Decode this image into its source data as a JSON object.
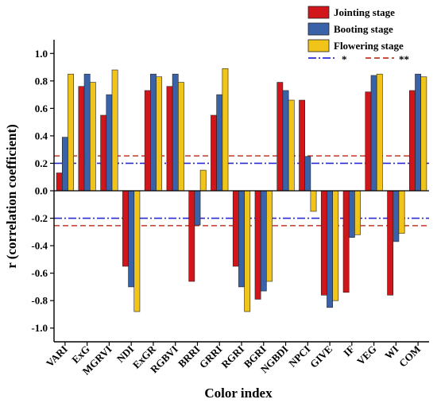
{
  "chart_data": {
    "type": "bar",
    "xlabel": "Color index",
    "ylabel": "r (correlation coefficient)",
    "ylim": [
      -1.1,
      1.1
    ],
    "yticks": [
      -1.0,
      -0.8,
      -0.6,
      -0.4,
      -0.2,
      0.0,
      0.2,
      0.4,
      0.6,
      0.8,
      1.0
    ],
    "ytick_labels": [
      "-1.0",
      "-0.8",
      "-0.6",
      "-0.4",
      "-0.2",
      "0.0",
      "0.2",
      "0.4",
      "0.6",
      "0.8",
      "1.0"
    ],
    "categories": [
      "VARI",
      "ExG",
      "MGRVI",
      "NDI",
      "ExGR",
      "RGBVI",
      "BRRI",
      "GRRI",
      "RGRI",
      "BGRI",
      "NGBDI",
      "NPCI",
      "GIVE",
      "IF",
      "VEG",
      "WI",
      "COM"
    ],
    "series": [
      {
        "name": "Jointing stage",
        "color": "#d0161b",
        "values": [
          0.13,
          0.76,
          0.55,
          -0.55,
          0.73,
          0.76,
          -0.66,
          0.55,
          -0.55,
          -0.79,
          0.79,
          0.66,
          -0.76,
          -0.74,
          0.72,
          -0.76,
          0.73
        ]
      },
      {
        "name": "Booting stage",
        "color": "#3a62a8",
        "values": [
          0.39,
          0.85,
          0.7,
          -0.7,
          0.85,
          0.85,
          -0.25,
          0.7,
          -0.7,
          -0.73,
          0.73,
          0.25,
          -0.85,
          -0.34,
          0.84,
          -0.37,
          0.85
        ]
      },
      {
        "name": "Flowering stage",
        "color": "#f0c419",
        "values": [
          0.85,
          0.79,
          0.88,
          -0.88,
          0.83,
          0.79,
          0.15,
          0.89,
          -0.88,
          -0.66,
          0.66,
          -0.15,
          -0.8,
          -0.32,
          0.85,
          -0.31,
          0.83
        ]
      }
    ],
    "reference_lines": [
      {
        "label": "*",
        "values": [
          0.2,
          -0.2
        ],
        "color": "#2b2bd6",
        "style": "dash-dot"
      },
      {
        "label": "**",
        "values": [
          0.254,
          -0.254
        ],
        "color": "#c0392b",
        "style": "dashed"
      }
    ],
    "legend_position": "top-right",
    "grid": false
  }
}
